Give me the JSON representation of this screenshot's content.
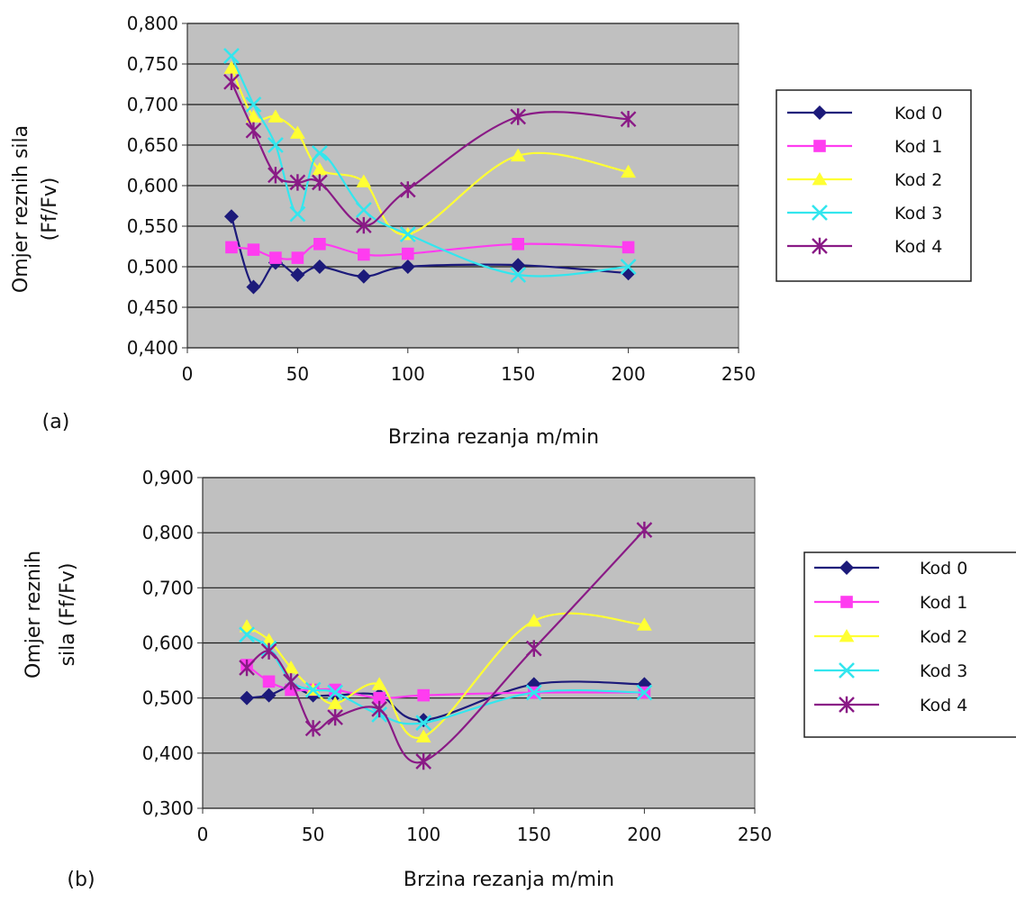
{
  "chart_data": [
    {
      "type": "line",
      "panel_label": "(a)",
      "ylabel_lines": [
        "Omjer reznih sila",
        "(Ff/Fv)"
      ],
      "xlabel": "Brzina rezanja m/min",
      "xlim": [
        0,
        250
      ],
      "ylim": [
        0.4,
        0.8
      ],
      "xticks": [
        "0",
        "50",
        "100",
        "150",
        "200",
        "250"
      ],
      "yticks": [
        "0,400",
        "0,450",
        "0,500",
        "0,550",
        "0,600",
        "0,650",
        "0,700",
        "0,750",
        "0,800"
      ],
      "grid": "horizontal",
      "legend_position": "right",
      "series": [
        {
          "name": "Kod 0",
          "color": "#1c1a7a",
          "marker": "diamond",
          "x": [
            20,
            30,
            40,
            50,
            60,
            80,
            100,
            150,
            200
          ],
          "y": [
            0.562,
            0.475,
            0.505,
            0.49,
            0.5,
            0.488,
            0.5,
            0.502,
            0.492
          ]
        },
        {
          "name": "Kod 1",
          "color": "#ff3cf0",
          "marker": "square",
          "x": [
            20,
            30,
            40,
            50,
            60,
            80,
            100,
            150,
            200
          ],
          "y": [
            0.524,
            0.521,
            0.511,
            0.511,
            0.528,
            0.515,
            0.516,
            0.528,
            0.524
          ]
        },
        {
          "name": "Kod 2",
          "color": "#ffff33",
          "marker": "triangle",
          "x": [
            20,
            30,
            40,
            50,
            60,
            80,
            100,
            150,
            200
          ],
          "y": [
            0.745,
            0.685,
            0.685,
            0.665,
            0.62,
            0.605,
            0.54,
            0.637,
            0.617
          ]
        },
        {
          "name": "Kod 3",
          "color": "#33e6ee",
          "marker": "x",
          "x": [
            20,
            30,
            40,
            50,
            60,
            80,
            100,
            150,
            200
          ],
          "y": [
            0.76,
            0.7,
            0.65,
            0.565,
            0.64,
            0.57,
            0.54,
            0.49,
            0.5
          ]
        },
        {
          "name": "Kod 4",
          "color": "#8a1a86",
          "marker": "star",
          "x": [
            20,
            30,
            40,
            50,
            60,
            80,
            100,
            150,
            200
          ],
          "y": [
            0.728,
            0.668,
            0.613,
            0.604,
            0.604,
            0.551,
            0.595,
            0.685,
            0.682
          ]
        }
      ]
    },
    {
      "type": "line",
      "panel_label": "(b)",
      "ylabel_lines": [
        "Omjer reznih",
        "sila (Ff/Fv)"
      ],
      "xlabel": "Brzina rezanja m/min",
      "xlim": [
        0,
        250
      ],
      "ylim": [
        0.3,
        0.9
      ],
      "xticks": [
        "0",
        "50",
        "100",
        "150",
        "200",
        "250"
      ],
      "yticks": [
        "0,300",
        "0,400",
        "0,500",
        "0,600",
        "0,700",
        "0,800",
        "0,900"
      ],
      "grid": "horizontal",
      "legend_position": "right",
      "series": [
        {
          "name": "Kod 0",
          "color": "#1c1a7a",
          "marker": "diamond",
          "x": [
            20,
            30,
            40,
            50,
            60,
            80,
            100,
            150,
            200
          ],
          "y": [
            0.5,
            0.505,
            0.52,
            0.505,
            0.505,
            0.505,
            0.46,
            0.525,
            0.525
          ]
        },
        {
          "name": "Kod 1",
          "color": "#ff3cf0",
          "marker": "square",
          "x": [
            20,
            30,
            40,
            50,
            60,
            80,
            100,
            150,
            200
          ],
          "y": [
            0.56,
            0.53,
            0.515,
            0.515,
            0.515,
            0.5,
            0.505,
            0.51,
            0.51
          ]
        },
        {
          "name": "Kod 2",
          "color": "#ffff33",
          "marker": "triangle",
          "x": [
            20,
            30,
            40,
            50,
            60,
            80,
            100,
            150,
            200
          ],
          "y": [
            0.63,
            0.605,
            0.555,
            0.515,
            0.49,
            0.525,
            0.43,
            0.64,
            0.633
          ]
        },
        {
          "name": "Kod 3",
          "color": "#33e6ee",
          "marker": "x",
          "x": [
            20,
            30,
            40,
            50,
            60,
            80,
            100,
            150,
            200
          ],
          "y": [
            0.615,
            0.59,
            0.53,
            0.515,
            0.51,
            0.47,
            0.455,
            0.51,
            0.51
          ]
        },
        {
          "name": "Kod 4",
          "color": "#8a1a86",
          "marker": "star",
          "x": [
            20,
            30,
            40,
            50,
            60,
            80,
            100,
            150,
            200
          ],
          "y": [
            0.555,
            0.585,
            0.53,
            0.445,
            0.465,
            0.48,
            0.385,
            0.59,
            0.805
          ]
        }
      ]
    }
  ],
  "colors": {
    "plot_background": "#c0c0c0",
    "gridline": "#1a1a1a"
  }
}
